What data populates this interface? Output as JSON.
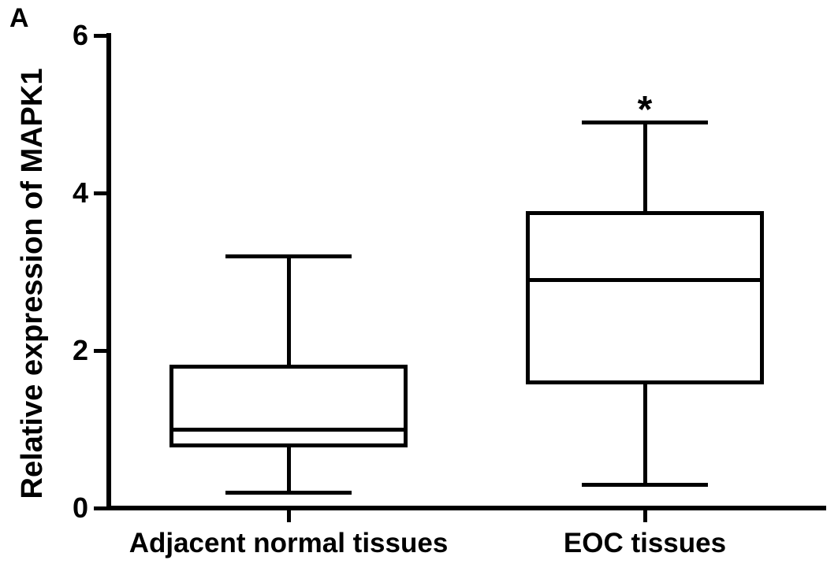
{
  "chart_data": {
    "type": "box",
    "panel_label": "A",
    "title": "",
    "ylabel": "Relative expression of MAPK1",
    "xlabel": "",
    "ylim": [
      0,
      6
    ],
    "yticks": [
      0,
      2,
      4,
      6
    ],
    "grid": false,
    "legend": false,
    "categories": [
      "Adjacent normal tissues",
      "EOC tissues"
    ],
    "series": [
      {
        "name": "Adjacent normal tissues",
        "whisker_low": 0.2,
        "q1": 0.8,
        "median": 1.0,
        "q3": 1.8,
        "whisker_high": 3.2,
        "annotation": ""
      },
      {
        "name": "EOC tissues",
        "whisker_low": 0.3,
        "q1": 1.6,
        "median": 2.9,
        "q3": 3.75,
        "whisker_high": 4.9,
        "annotation": "*"
      }
    ],
    "colors": {
      "line": "#000000",
      "background": "#ffffff"
    }
  }
}
